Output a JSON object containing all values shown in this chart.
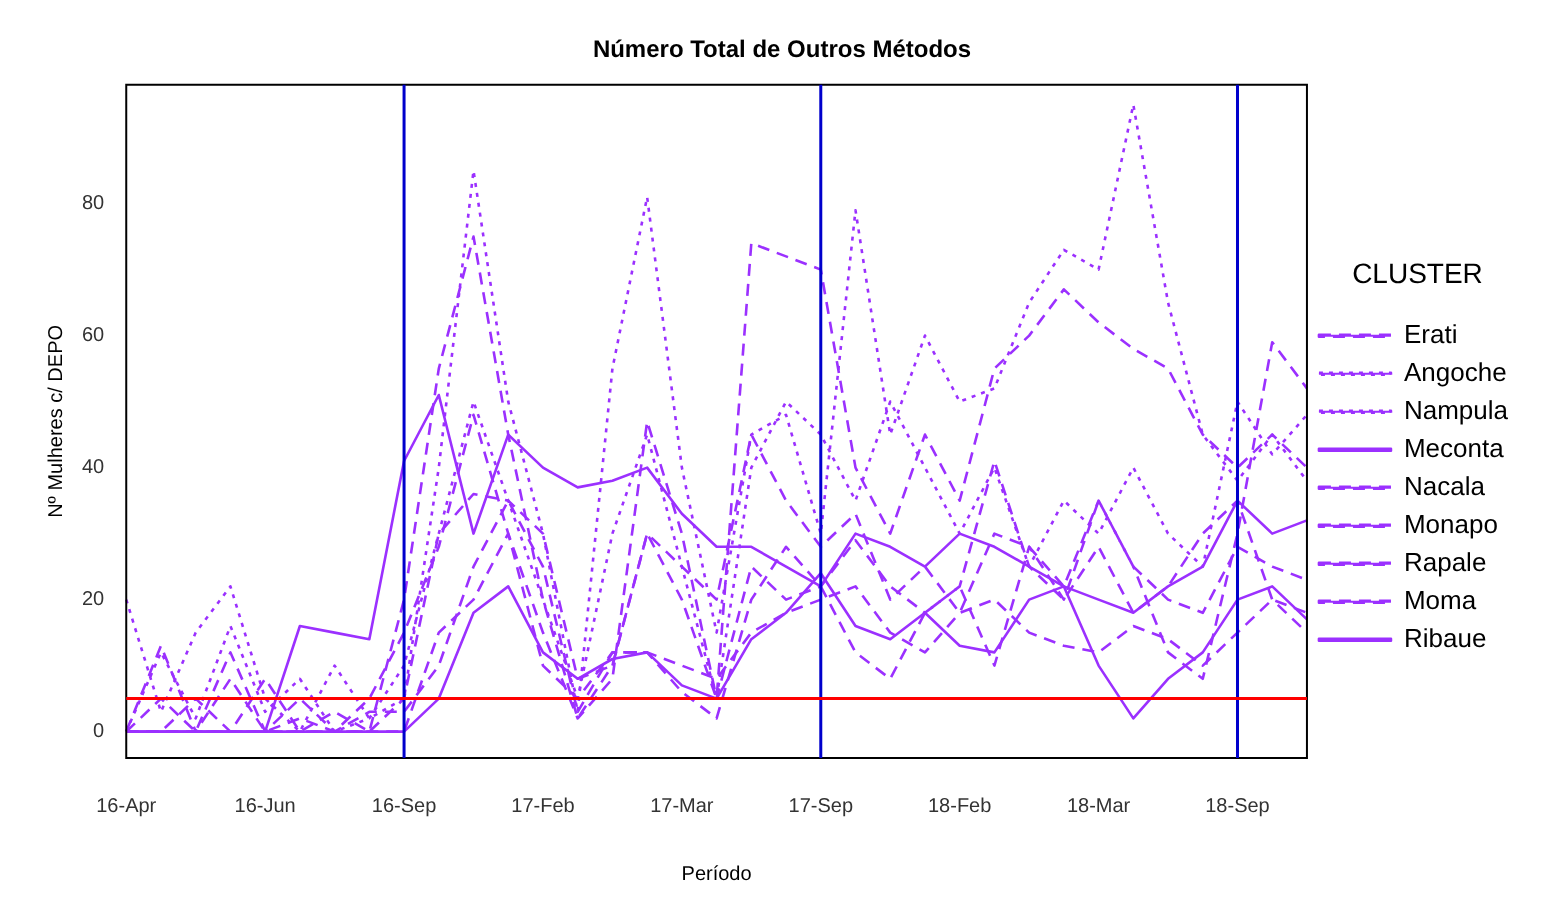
{
  "chart_data": {
    "type": "line",
    "title": "Número Total de Outros Métodos",
    "xlabel": "Período",
    "ylabel": "Nº Mulheres c/ DEPO",
    "legend_title": "CLUSTER",
    "legend": "right",
    "grid": false,
    "marker": "none",
    "categories": [
      "16-Apr",
      null,
      null,
      null,
      "16-Jun",
      null,
      null,
      null,
      "16-Sep",
      null,
      null,
      null,
      "17-Feb",
      null,
      null,
      null,
      "17-Mar",
      null,
      null,
      null,
      "17-Sep",
      null,
      null,
      null,
      "18-Feb",
      null,
      null,
      null,
      "18-Mar",
      null,
      null,
      null,
      "18-Sep",
      null,
      null
    ],
    "ylim": [
      -4,
      98
    ],
    "yticks": [
      0,
      20,
      40,
      60,
      80
    ],
    "ref_lines": [
      {
        "axis": "x",
        "value": "16-Sep",
        "color": "#0000cc"
      },
      {
        "axis": "x",
        "value": "17-Sep",
        "color": "#0000cc"
      },
      {
        "axis": "x",
        "value": "18-Sep",
        "color": "#0000cc"
      },
      {
        "axis": "y",
        "value": 5,
        "color": "#ff0000"
      }
    ],
    "series": [
      {
        "name": "Erati",
        "color": "#9b30ff",
        "line_style": "dashed",
        "values": [
          0,
          0,
          5,
          0,
          8,
          0,
          3,
          0,
          20,
          55,
          75,
          45,
          20,
          2,
          10,
          30,
          20,
          5,
          74,
          72,
          70,
          40,
          30,
          45,
          35,
          55,
          60,
          67,
          62,
          58,
          55,
          45,
          40,
          45,
          40
        ]
      },
      {
        "name": "Angoche",
        "color": "#9b30ff",
        "line_style": "dotted",
        "values": [
          20,
          3,
          15,
          22,
          5,
          0,
          10,
          2,
          5,
          40,
          85,
          50,
          30,
          3,
          55,
          81,
          40,
          15,
          45,
          48,
          30,
          79,
          45,
          60,
          50,
          52,
          65,
          73,
          70,
          95,
          65,
          45,
          38,
          45,
          38
        ]
      },
      {
        "name": "Nampula",
        "color": "#9b30ff",
        "line_style": "dotted",
        "values": [
          0,
          12,
          2,
          16,
          3,
          8,
          0,
          2,
          10,
          30,
          50,
          35,
          20,
          5,
          30,
          45,
          25,
          5,
          40,
          50,
          45,
          35,
          50,
          40,
          30,
          40,
          25,
          35,
          30,
          40,
          30,
          25,
          50,
          42,
          48
        ]
      },
      {
        "name": "Meconta",
        "color": "#9b30ff",
        "line_style": "solid",
        "values": [
          0,
          0,
          0,
          0,
          0,
          16,
          15,
          14,
          41,
          51,
          30,
          45,
          40,
          37,
          38,
          40,
          33,
          28,
          28,
          25,
          22,
          30,
          28,
          25,
          30,
          28,
          25,
          22,
          20,
          18,
          22,
          25,
          35,
          30,
          32
        ]
      },
      {
        "name": "Nacala",
        "color": "#9b30ff",
        "line_style": "dashed",
        "values": [
          0,
          13,
          0,
          0,
          0,
          0,
          0,
          0,
          5,
          30,
          36,
          35,
          30,
          8,
          10,
          30,
          25,
          20,
          45,
          35,
          28,
          33,
          20,
          25,
          18,
          30,
          28,
          22,
          35,
          25,
          20,
          18,
          28,
          25,
          23
        ]
      },
      {
        "name": "Monapo",
        "color": "#9b30ff",
        "line_style": "dashed",
        "values": [
          0,
          0,
          0,
          8,
          0,
          2,
          0,
          5,
          15,
          28,
          48,
          30,
          15,
          2,
          8,
          47,
          30,
          5,
          25,
          20,
          22,
          29,
          22,
          18,
          22,
          41,
          25,
          20,
          28,
          18,
          22,
          30,
          35,
          20,
          15
        ]
      },
      {
        "name": "Rapale",
        "color": "#9b30ff",
        "line_style": "dashed",
        "values": [
          0,
          5,
          0,
          12,
          0,
          5,
          0,
          3,
          3,
          10,
          25,
          35,
          25,
          3,
          12,
          12,
          6,
          2,
          20,
          28,
          22,
          12,
          8,
          18,
          22,
          10,
          28,
          20,
          35,
          25,
          12,
          8,
          30,
          59,
          52
        ]
      },
      {
        "name": "Moma",
        "color": "#9b30ff",
        "line_style": "dashed",
        "values": [
          0,
          0,
          0,
          0,
          0,
          0,
          0,
          0,
          0,
          15,
          20,
          30,
          10,
          5,
          12,
          12,
          10,
          8,
          15,
          18,
          20,
          22,
          15,
          12,
          18,
          20,
          15,
          13,
          12,
          16,
          14,
          10,
          15,
          20,
          18
        ]
      },
      {
        "name": "Ribaue",
        "color": "#9b30ff",
        "line_style": "solid",
        "values": [
          0,
          0,
          0,
          0,
          0,
          0,
          0,
          0,
          0,
          5,
          18,
          22,
          12,
          8,
          11,
          12,
          7,
          5,
          14,
          18,
          24,
          16,
          14,
          18,
          13,
          12,
          20,
          22,
          10,
          2,
          8,
          12,
          20,
          22,
          17
        ]
      }
    ]
  }
}
